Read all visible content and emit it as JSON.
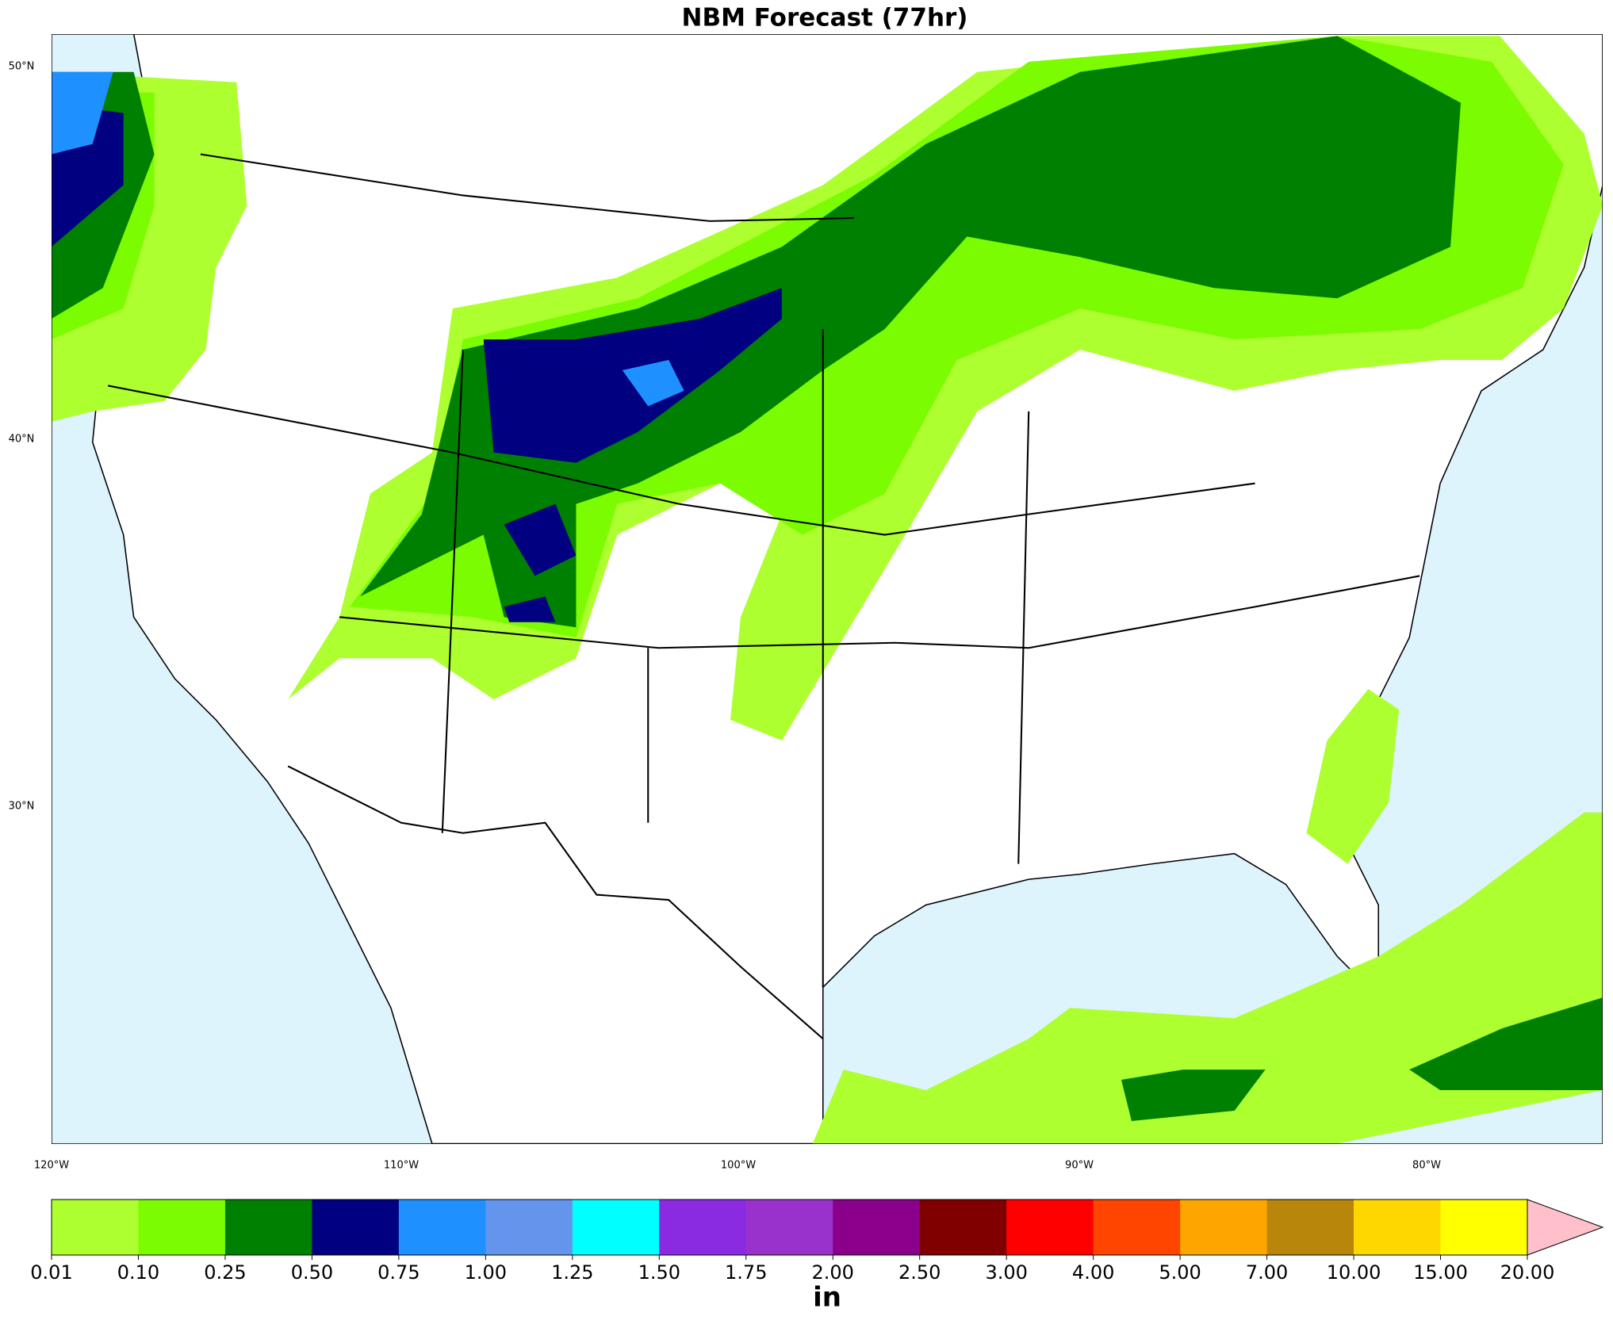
{
  "title": "NBM Forecast (77hr)",
  "lat_labels": [
    "50°N",
    "40°N",
    "30°N"
  ],
  "lon_labels": [
    "120°W",
    "110°W",
    "100°W",
    "90°W",
    "80°W"
  ],
  "colorbar": {
    "label": "in",
    "boundaries": [
      {
        "value": 0.01,
        "label": "0.01"
      },
      {
        "value": 0.1,
        "label": "0.10"
      },
      {
        "value": 0.25,
        "label": "0.25"
      },
      {
        "value": 0.5,
        "label": "0.50"
      },
      {
        "value": 0.75,
        "label": "0.75"
      },
      {
        "value": 1,
        "label": "1.00"
      },
      {
        "value": 1.25,
        "label": "1.25"
      },
      {
        "value": 1.5,
        "label": "1.50"
      },
      {
        "value": 1.75,
        "label": "1.75"
      },
      {
        "value": 2,
        "label": "2.00"
      },
      {
        "value": 2.5,
        "label": "2.50"
      },
      {
        "value": 3,
        "label": "3.00"
      },
      {
        "value": 4,
        "label": "4.00"
      },
      {
        "value": 5,
        "label": "5.00"
      },
      {
        "value": 7,
        "label": "7.00"
      },
      {
        "value": 10,
        "label": "10.00"
      },
      {
        "value": 15,
        "label": "15.00"
      },
      {
        "value": 20,
        "label": "20.00"
      }
    ],
    "colors": [
      "#adff2f",
      "#7cfc00",
      "#008000",
      "#000080",
      "#1e90ff",
      "#6495ed",
      "#00ffff",
      "#8a2be2",
      "#9932cc",
      "#8b008b",
      "#800000",
      "#ff0000",
      "#ff4500",
      "#ffa500",
      "#b8860b",
      "#ffd700",
      "#ffff00"
    ],
    "extend_color": "#ffc0cb"
  }
}
